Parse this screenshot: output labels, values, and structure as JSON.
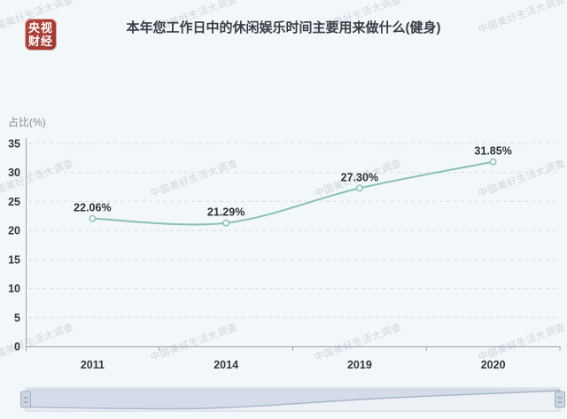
{
  "page": {
    "background_color": "#f2f7f9",
    "watermark_text": "中国美好生活大调查"
  },
  "logo": {
    "line1": "央视",
    "line2": "财经",
    "color": "#a83a31"
  },
  "header": {
    "title": "本年您工作日中的休闲娱乐时间主要用来做什么(健身)"
  },
  "chart_data": {
    "type": "line",
    "title": "本年您工作日中的休闲娱乐时间主要用来做什么(健身)",
    "categories": [
      "2011",
      "2014",
      "2019",
      "2020"
    ],
    "values": [
      22.06,
      21.29,
      27.3,
      31.85
    ],
    "point_labels": [
      "22.06%",
      "21.29%",
      "27.30%",
      "31.85%"
    ],
    "xlabel": "",
    "ylabel": "占比(%)",
    "ylim": [
      0,
      35
    ],
    "yticks": [
      0,
      5,
      10,
      15,
      20,
      25,
      30,
      35
    ],
    "grid": true,
    "grid_style": "dashed",
    "legend_position": "none",
    "line_color": "#89c2b0",
    "marker": "open-circle",
    "label_color": "#2c3137",
    "axis_color": "#99a3ac",
    "has_datazoom_slider": true
  },
  "datazoom": {
    "track_fill": "#edf1f6",
    "shadow_fill": "#d2dae7",
    "mini_line_color": "#a9b5c9",
    "handle_fill": "#ccd5e2",
    "handle_border": "#9fadc4"
  }
}
